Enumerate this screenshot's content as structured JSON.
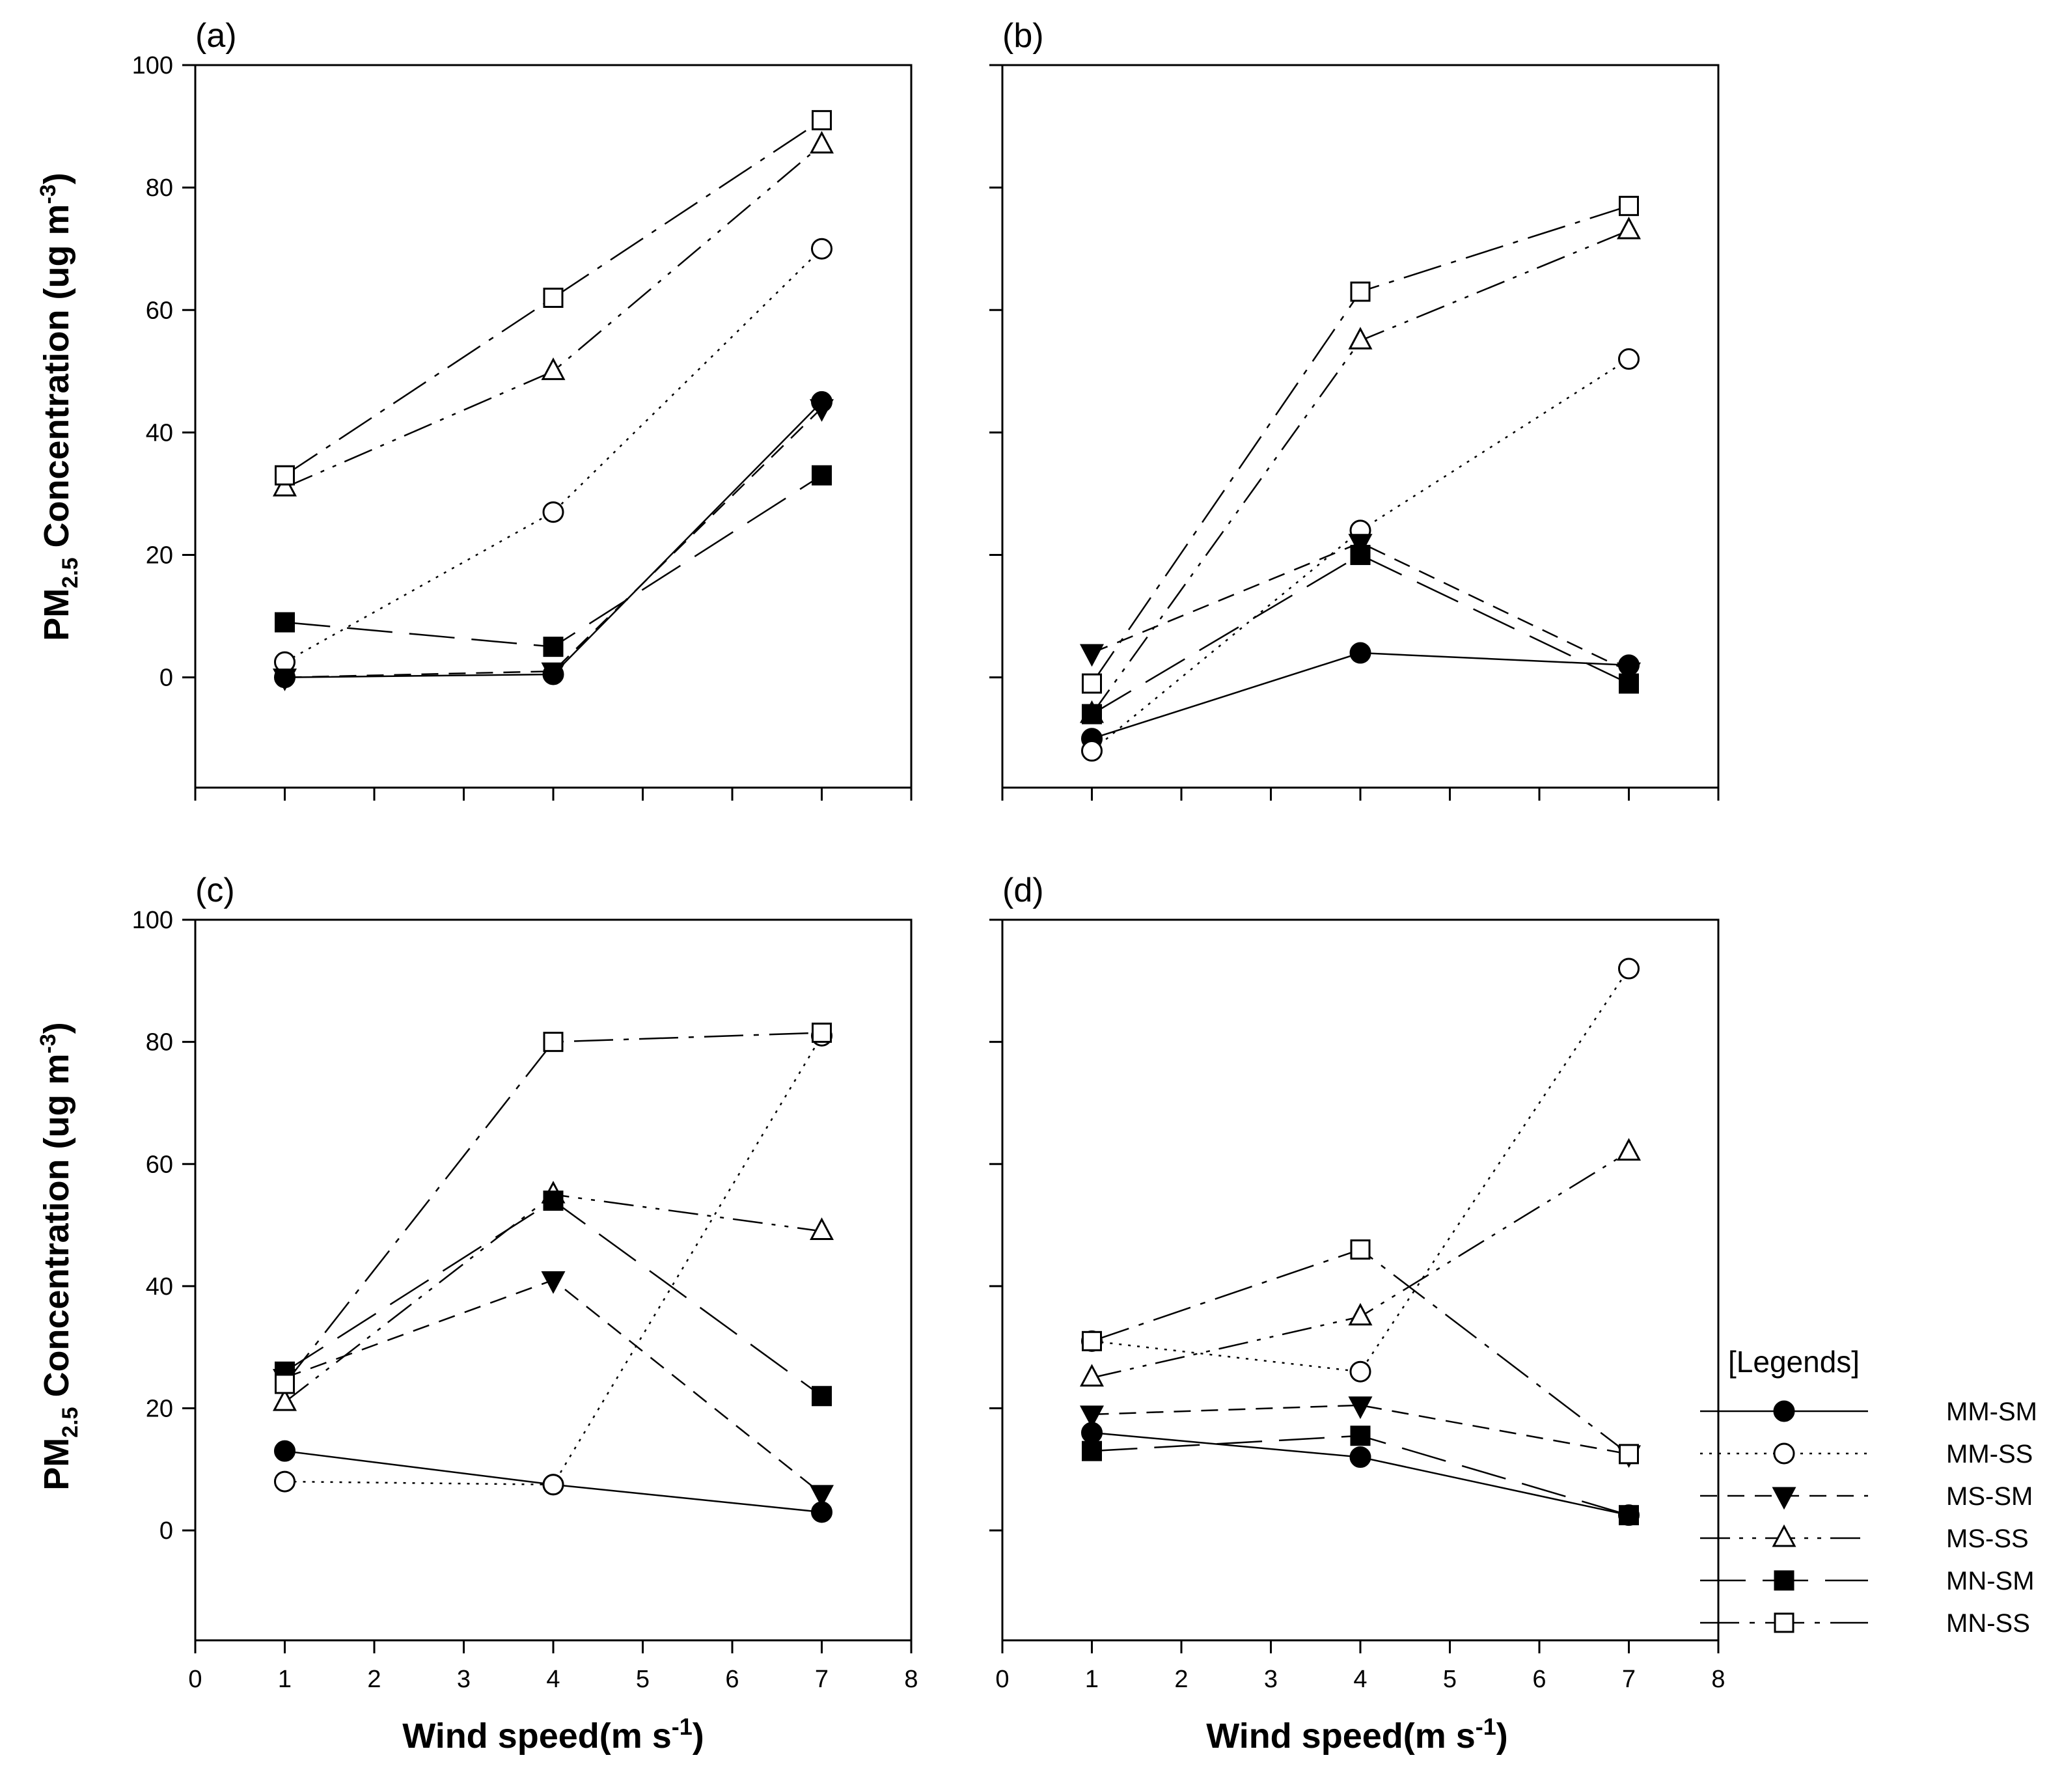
{
  "chart_data": {
    "type": "line",
    "x_axis_label": "Wind speed(m s",
    "x_axis_label_sup": "-1",
    "x_axis_label_end": ")",
    "y_axis_label_prefix": "PM",
    "y_axis_label_sub": "2.5",
    "y_axis_label_mid": " Concentration (ug m",
    "y_axis_label_sup": "-3",
    "y_axis_label_end": ")",
    "xlim": [
      0,
      8
    ],
    "ylim": [
      -18,
      100
    ],
    "x_ticks": [
      0,
      1,
      2,
      3,
      4,
      5,
      6,
      7,
      8
    ],
    "y_ticks": [
      0,
      20,
      40,
      60,
      80,
      100
    ],
    "legend": {
      "title": "[Legends]",
      "entries": [
        "MM-SM",
        "MM-SS",
        "MS-SM",
        "MS-SS",
        "MN-SM",
        "MN-SS"
      ]
    },
    "series_styles": {
      "MM-SM": {
        "marker": "filled-circle",
        "line": "solid"
      },
      "MM-SS": {
        "marker": "open-circle",
        "line": "dotted"
      },
      "MS-SM": {
        "marker": "filled-down-triangle",
        "line": "short-dash"
      },
      "MS-SS": {
        "marker": "open-up-triangle",
        "line": "dash-dot-dot"
      },
      "MN-SM": {
        "marker": "filled-square",
        "line": "long-dash"
      },
      "MN-SS": {
        "marker": "open-square",
        "line": "dash-dot"
      }
    },
    "panels": [
      {
        "tag": "(a)",
        "x": [
          1,
          4,
          7
        ],
        "series": [
          {
            "name": "MM-SM",
            "values": [
              0,
              0.5,
              45
            ]
          },
          {
            "name": "MM-SS",
            "values": [
              2.5,
              27,
              70
            ]
          },
          {
            "name": "MS-SM",
            "values": [
              0,
              1,
              44
            ]
          },
          {
            "name": "MS-SS",
            "values": [
              31,
              50,
              87
            ]
          },
          {
            "name": "MN-SM",
            "values": [
              9,
              5,
              33
            ]
          },
          {
            "name": "MN-SS",
            "values": [
              33,
              62,
              91
            ]
          }
        ]
      },
      {
        "tag": "(b)",
        "x": [
          1,
          4,
          7
        ],
        "series": [
          {
            "name": "MM-SM",
            "values": [
              -10,
              4,
              2
            ]
          },
          {
            "name": "MM-SS",
            "values": [
              -12,
              24,
              52
            ]
          },
          {
            "name": "MS-SM",
            "values": [
              4,
              22,
              1
            ]
          },
          {
            "name": "MS-SS",
            "values": [
              -6,
              55,
              73
            ]
          },
          {
            "name": "MN-SM",
            "values": [
              -6,
              20,
              -1
            ]
          },
          {
            "name": "MN-SS",
            "values": [
              -1,
              63,
              77
            ]
          }
        ]
      },
      {
        "tag": "(c)",
        "x": [
          1,
          4,
          7
        ],
        "series": [
          {
            "name": "MM-SM",
            "values": [
              13,
              7.5,
              3
            ]
          },
          {
            "name": "MM-SS",
            "values": [
              8,
              7.5,
              81
            ]
          },
          {
            "name": "MS-SM",
            "values": [
              25,
              41,
              6
            ]
          },
          {
            "name": "MS-SS",
            "values": [
              21,
              55,
              49
            ]
          },
          {
            "name": "MN-SM",
            "values": [
              26,
              54,
              22
            ]
          },
          {
            "name": "MN-SS",
            "values": [
              24,
              80,
              81.5
            ]
          }
        ]
      },
      {
        "tag": "(d)",
        "x": [
          1,
          4,
          7
        ],
        "series": [
          {
            "name": "MM-SM",
            "values": [
              16,
              12,
              2.5
            ]
          },
          {
            "name": "MM-SS",
            "values": [
              31,
              26,
              92
            ]
          },
          {
            "name": "MS-SM",
            "values": [
              19,
              20.5,
              12.5
            ]
          },
          {
            "name": "MS-SS",
            "values": [
              25,
              35,
              62
            ]
          },
          {
            "name": "MN-SM",
            "values": [
              13,
              15.5,
              2.5
            ]
          },
          {
            "name": "MN-SS",
            "values": [
              31,
              46,
              12.5
            ]
          }
        ]
      }
    ]
  }
}
